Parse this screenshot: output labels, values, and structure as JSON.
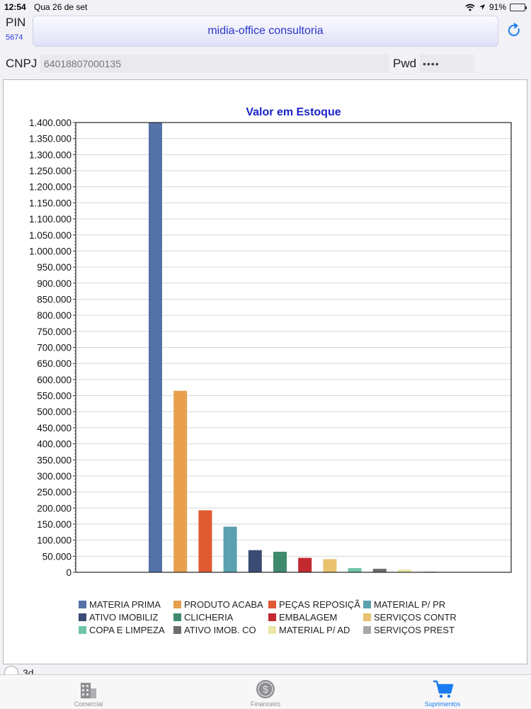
{
  "status_bar": {
    "time": "12:54",
    "date": "Qua 26 de set",
    "battery": "91%",
    "battery_level": 0.91
  },
  "header": {
    "pin_label": "PIN",
    "pin_value": "5674",
    "company": "midia-office consultoria",
    "refresh_icon": "refresh-icon"
  },
  "credentials": {
    "cnpj_label": "CNPJ",
    "cnpj_value": "64018807000135",
    "pwd_label": "Pwd",
    "pwd_value": "••••"
  },
  "toggle_3d_label": "3d",
  "tabs": [
    {
      "label": "Comercial",
      "icon": "building-icon",
      "active": false
    },
    {
      "label": "Financeiro",
      "icon": "dollar-coin-icon",
      "active": false
    },
    {
      "label": "Suprimentos",
      "icon": "cart-icon",
      "active": true
    }
  ],
  "chart_data": {
    "type": "bar",
    "title": "Valor em Estoque",
    "ylim": [
      0,
      1400000
    ],
    "yticks": [
      "0",
      "50.000",
      "100.000",
      "150.000",
      "200.000",
      "250.000",
      "300.000",
      "350.000",
      "400.000",
      "450.000",
      "500.000",
      "550.000",
      "600.000",
      "650.000",
      "700.000",
      "750.000",
      "800.000",
      "850.000",
      "900.000",
      "950.000",
      "1.000.000",
      "1.050.000",
      "1.100.000",
      "1.150.000",
      "1.200.000",
      "1.250.000",
      "1.300.000",
      "1.350.000",
      "1.400.000"
    ],
    "grid": true,
    "legend_position": "bottom",
    "series": [
      {
        "name": "MATERIA PRIMA",
        "value": 1400000,
        "color": "#5472a6"
      },
      {
        "name": "PRODUTO ACABA",
        "value": 565000,
        "color": "#e8a04e"
      },
      {
        "name": "PEÇAS REPOSIÇÃ",
        "value": 193000,
        "color": "#e05a32"
      },
      {
        "name": "MATERIAL P/ PR",
        "value": 142000,
        "color": "#5aa0ae"
      },
      {
        "name": "ATIVO IMOBILIZ",
        "value": 69000,
        "color": "#3b4c74"
      },
      {
        "name": "CLICHERIA",
        "value": 64000,
        "color": "#3f8a6d"
      },
      {
        "name": "EMBALAGEM",
        "value": 45000,
        "color": "#c2292f"
      },
      {
        "name": "SERVIÇOS CONTR",
        "value": 41000,
        "color": "#e9c16f"
      },
      {
        "name": "COPA E LIMPEZA",
        "value": 13000,
        "color": "#6ec6a6"
      },
      {
        "name": "ATIVO IMOB. CO",
        "value": 11000,
        "color": "#6e6e70"
      },
      {
        "name": "MATERIAL P/ AD",
        "value": 9000,
        "color": "#ece7a6"
      },
      {
        "name": "SERVIÇOS PREST",
        "value": 2000,
        "color": "#a7a7aa"
      }
    ]
  }
}
